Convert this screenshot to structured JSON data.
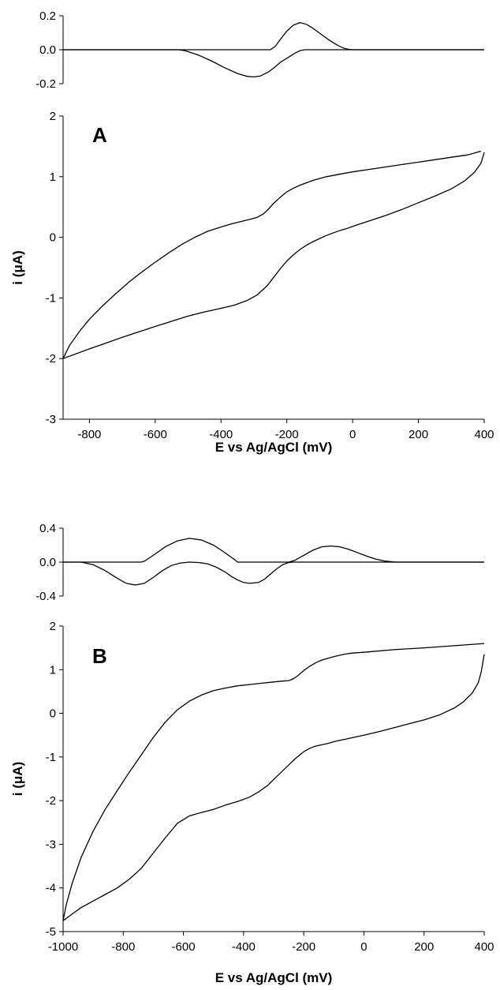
{
  "chart_data": [
    {
      "type": "line",
      "panel": "A",
      "xlim": [
        -880,
        400
      ],
      "x_ticks": [
        -800,
        -600,
        -400,
        -200,
        0,
        200,
        400
      ],
      "xlabel": "E vs Ag/AgCl (mV)",
      "top_subplot": {
        "ylim": [
          -0.2,
          0.2
        ],
        "y_ticks": [
          0.2,
          0.0,
          -0.2
        ],
        "y_tick_labels": [
          "0.2",
          "0.0",
          "-0.2"
        ],
        "series": [
          {
            "x": [
              -880,
              -530,
              -510,
              -470,
              -430,
              -390,
              -350,
              -320,
              -300,
              -280,
              -255,
              -235,
              -220,
              -200,
              -175,
              -160,
              -145,
              -120,
              -95,
              -70,
              -45,
              -25,
              -10,
              0,
              10,
              400
            ],
            "y": [
              0,
              0,
              -0.005,
              -0.03,
              -0.065,
              -0.105,
              -0.14,
              -0.157,
              -0.16,
              -0.155,
              -0.13,
              -0.1,
              -0.075,
              -0.05,
              -0.02,
              -0.005,
              0,
              0,
              0,
              0,
              0,
              0,
              0,
              0,
              0,
              0
            ]
          },
          {
            "x": [
              -880,
              -530,
              -430,
              -300,
              -250,
              -235,
              -220,
              -200,
              -180,
              -160,
              -140,
              -120,
              -95,
              -70,
              -45,
              -25,
              -10,
              0,
              10,
              400
            ],
            "y": [
              0,
              0,
              0,
              0,
              0,
              0.02,
              0.06,
              0.11,
              0.145,
              0.16,
              0.15,
              0.125,
              0.09,
              0.055,
              0.025,
              0.008,
              0.002,
              0,
              0,
              0
            ]
          }
        ]
      },
      "main_subplot": {
        "ylabel": "i (μA)",
        "ylim": [
          -3,
          2
        ],
        "y_ticks": [
          2,
          1,
          0,
          -1,
          -2,
          -3
        ],
        "series": [
          {
            "x": [
              -880,
              -860,
              -830,
              -800,
              -760,
              -720,
              -680,
              -640,
              -600,
              -560,
              -520,
              -480,
              -440,
              -400,
              -370,
              -340,
              -310,
              -290,
              -270,
              -255,
              -240,
              -220,
              -200,
              -180,
              -160,
              -140,
              -120,
              -100,
              -80,
              -60,
              -40,
              -20,
              0,
              50,
              100,
              150,
              200,
              250,
              300,
              350,
              390
            ],
            "y": [
              -2.0,
              -1.78,
              -1.55,
              -1.35,
              -1.13,
              -0.93,
              -0.74,
              -0.57,
              -0.41,
              -0.26,
              -0.12,
              0.0,
              0.1,
              0.17,
              0.22,
              0.26,
              0.3,
              0.33,
              0.39,
              0.47,
              0.56,
              0.66,
              0.75,
              0.81,
              0.86,
              0.9,
              0.94,
              0.97,
              1.0,
              1.02,
              1.04,
              1.06,
              1.08,
              1.12,
              1.16,
              1.2,
              1.24,
              1.28,
              1.32,
              1.36,
              1.42
            ]
          },
          {
            "x": [
              -880,
              -800,
              -700,
              -600,
              -500,
              -450,
              -400,
              -360,
              -320,
              -290,
              -260,
              -240,
              -220,
              -200,
              -180,
              -160,
              -140,
              -120,
              -100,
              -80,
              -60,
              -40,
              -20,
              0,
              50,
              100,
              150,
              200,
              250,
              300,
              340,
              370,
              390,
              400
            ],
            "y": [
              -2.0,
              -1.84,
              -1.65,
              -1.47,
              -1.3,
              -1.23,
              -1.17,
              -1.12,
              -1.04,
              -0.95,
              -0.8,
              -0.66,
              -0.52,
              -0.39,
              -0.29,
              -0.2,
              -0.13,
              -0.07,
              -0.02,
              0.03,
              0.07,
              0.11,
              0.14,
              0.18,
              0.27,
              0.36,
              0.46,
              0.57,
              0.68,
              0.8,
              0.93,
              1.07,
              1.22,
              1.4
            ]
          }
        ]
      }
    },
    {
      "type": "line",
      "panel": "B",
      "xlim": [
        -1000,
        400
      ],
      "x_ticks": [
        -1000,
        -800,
        -600,
        -400,
        -200,
        0,
        200,
        400
      ],
      "xlabel": "E vs Ag/AgCl (mV)",
      "top_subplot": {
        "ylim": [
          -0.4,
          0.4
        ],
        "y_ticks": [
          0.4,
          0.0,
          -0.4
        ],
        "y_tick_labels": [
          "0.4",
          "0.0",
          "-0.4"
        ],
        "series": [
          {
            "x": [
              -1000,
              -940,
              -900,
              -860,
              -820,
              -790,
              -760,
              -730,
              -700,
              -670,
              -640,
              -610,
              -580,
              -550,
              -520,
              -490,
              -460,
              -440,
              -420,
              -400,
              -380,
              -350,
              -330,
              -310,
              -290,
              -270,
              -250,
              -235,
              -220,
              400
            ],
            "y": [
              0,
              0,
              -0.03,
              -0.1,
              -0.19,
              -0.25,
              -0.27,
              -0.25,
              -0.18,
              -0.1,
              -0.04,
              -0.01,
              0,
              -0.005,
              -0.02,
              -0.06,
              -0.12,
              -0.17,
              -0.21,
              -0.24,
              -0.25,
              -0.24,
              -0.2,
              -0.14,
              -0.08,
              -0.03,
              -0.005,
              0,
              0,
              0
            ]
          },
          {
            "x": [
              -1000,
              -740,
              -730,
              -700,
              -660,
              -620,
              -580,
              -540,
              -500,
              -470,
              -450,
              -430,
              -420,
              -300,
              -250,
              -230,
              -200,
              -170,
              -140,
              -110,
              -80,
              -50,
              -20,
              10,
              40,
              70,
              100,
              110,
              400
            ],
            "y": [
              0,
              0,
              0.01,
              0.08,
              0.18,
              0.25,
              0.28,
              0.26,
              0.2,
              0.13,
              0.08,
              0.03,
              0,
              0,
              0,
              0.02,
              0.08,
              0.14,
              0.18,
              0.19,
              0.18,
              0.15,
              0.11,
              0.07,
              0.035,
              0.012,
              0.002,
              0,
              0
            ]
          }
        ]
      },
      "main_subplot": {
        "ylabel": "i (μA)",
        "ylim": [
          -5,
          2
        ],
        "y_ticks": [
          2,
          1,
          0,
          -1,
          -2,
          -3,
          -4,
          -5
        ],
        "series": [
          {
            "x": [
              -1000,
              -990,
              -970,
              -940,
              -900,
              -860,
              -820,
              -780,
              -740,
              -700,
              -660,
              -620,
              -580,
              -540,
              -500,
              -460,
              -420,
              -380,
              -340,
              -300,
              -270,
              -250,
              -235,
              -220,
              -200,
              -180,
              -160,
              -140,
              -120,
              -100,
              -80,
              -60,
              -40,
              -20,
              0,
              100,
              200,
              300,
              400
            ],
            "y": [
              -4.75,
              -4.4,
              -3.9,
              -3.3,
              -2.7,
              -2.2,
              -1.77,
              -1.35,
              -0.95,
              -0.55,
              -0.2,
              0.08,
              0.28,
              0.42,
              0.52,
              0.58,
              0.63,
              0.66,
              0.69,
              0.72,
              0.74,
              0.75,
              0.79,
              0.86,
              0.98,
              1.08,
              1.16,
              1.22,
              1.26,
              1.3,
              1.33,
              1.36,
              1.38,
              1.39,
              1.4,
              1.46,
              1.5,
              1.55,
              1.6
            ]
          },
          {
            "x": [
              -1000,
              -970,
              -940,
              -900,
              -860,
              -820,
              -780,
              -740,
              -700,
              -660,
              -620,
              -580,
              -540,
              -500,
              -460,
              -420,
              -380,
              -350,
              -320,
              -290,
              -260,
              -230,
              -200,
              -180,
              -160,
              -140,
              -120,
              -100,
              -80,
              -60,
              -40,
              -20,
              0,
              50,
              100,
              150,
              200,
              250,
              300,
              330,
              360,
              380,
              390,
              400
            ],
            "y": [
              -4.75,
              -4.6,
              -4.45,
              -4.3,
              -4.15,
              -4.0,
              -3.8,
              -3.55,
              -3.2,
              -2.85,
              -2.52,
              -2.35,
              -2.27,
              -2.2,
              -2.1,
              -2.02,
              -1.92,
              -1.8,
              -1.65,
              -1.45,
              -1.25,
              -1.05,
              -0.88,
              -0.8,
              -0.75,
              -0.72,
              -0.69,
              -0.65,
              -0.62,
              -0.59,
              -0.56,
              -0.53,
              -0.5,
              -0.42,
              -0.33,
              -0.24,
              -0.15,
              -0.04,
              0.12,
              0.26,
              0.46,
              0.7,
              0.95,
              1.35
            ]
          }
        ]
      }
    }
  ]
}
